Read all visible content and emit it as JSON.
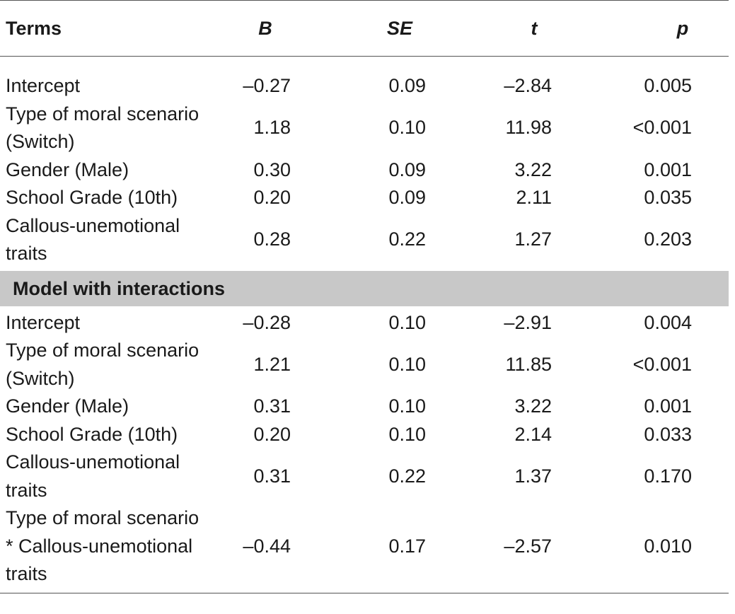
{
  "table": {
    "headers": {
      "term": "Terms",
      "b": "B",
      "se": "SE",
      "t": "t",
      "p": "p"
    },
    "main_model_rows": [
      {
        "term": "Intercept",
        "b": "–0.27",
        "se": "0.09",
        "t": "–2.84",
        "p": "0.005"
      },
      {
        "term": "Type of moral scenario (Switch)",
        "b": "1.18",
        "se": "0.10",
        "t": "11.98",
        "p": "<0.001"
      },
      {
        "term": "Gender (Male)",
        "b": "0.30",
        "se": "0.09",
        "t": "3.22",
        "p": "0.001"
      },
      {
        "term": "School Grade (10th)",
        "b": "0.20",
        "se": "0.09",
        "t": "2.11",
        "p": "0.035"
      },
      {
        "term": "Callous-unemotional traits",
        "b": "0.28",
        "se": "0.22",
        "t": "1.27",
        "p": "0.203"
      }
    ],
    "section_title": "Model with interactions",
    "interaction_model_rows": [
      {
        "term": "Intercept",
        "b": "–0.28",
        "se": "0.10",
        "t": "–2.91",
        "p": "0.004"
      },
      {
        "term": "Type of moral scenario (Switch)",
        "b": "1.21",
        "se": "0.10",
        "t": "11.85",
        "p": "<0.001"
      },
      {
        "term": "Gender (Male)",
        "b": "0.31",
        "se": "0.10",
        "t": "3.22",
        "p": "0.001"
      },
      {
        "term": "School Grade (10th)",
        "b": "0.20",
        "se": "0.10",
        "t": "2.14",
        "p": "0.033"
      },
      {
        "term": "Callous-unemotional traits",
        "b": "0.31",
        "se": "0.22",
        "t": "1.37",
        "p": "0.170"
      },
      {
        "term": "Type of moral scenario * Callous-unemotional traits",
        "b": "–0.44",
        "se": "0.17",
        "t": "–2.57",
        "p": "0.010"
      }
    ]
  }
}
